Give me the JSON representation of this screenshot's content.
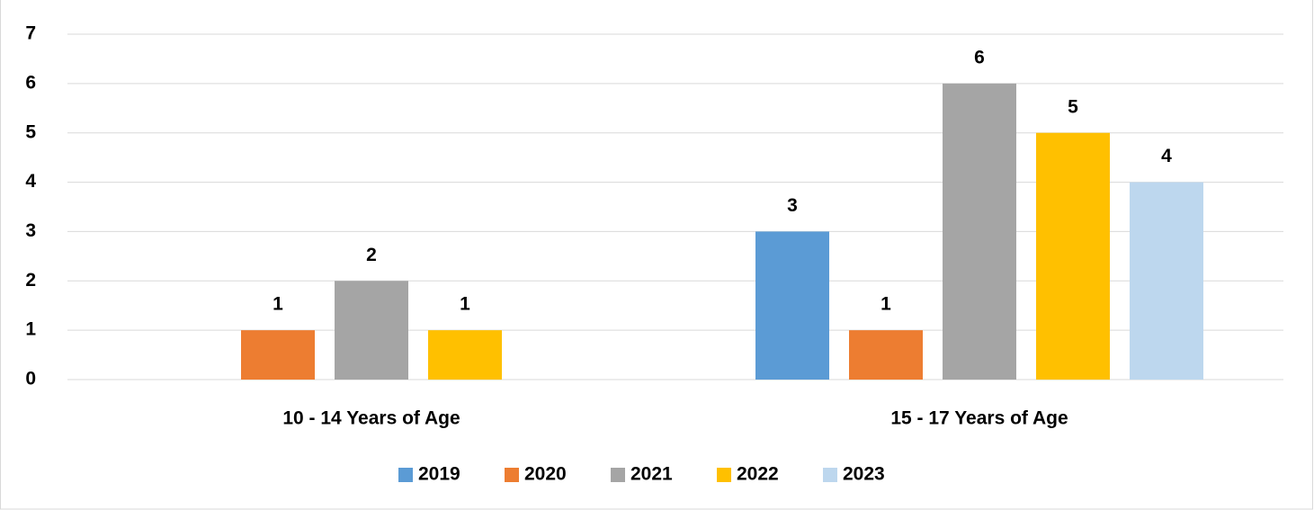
{
  "chart_data": {
    "type": "bar",
    "categories": [
      "10 - 14 Years of Age",
      "15 - 17 Years of Age"
    ],
    "series": [
      {
        "name": "2019",
        "color": "#5b9bd5",
        "values": [
          null,
          3
        ]
      },
      {
        "name": "2020",
        "color": "#ed7d31",
        "values": [
          1,
          1
        ]
      },
      {
        "name": "2021",
        "color": "#a5a5a5",
        "values": [
          2,
          6
        ]
      },
      {
        "name": "2022",
        "color": "#ffc000",
        "values": [
          1,
          5
        ]
      },
      {
        "name": "2023",
        "color": "#bdd7ee",
        "values": [
          null,
          4
        ]
      }
    ],
    "ylim": [
      0,
      7
    ],
    "yticks": [
      0,
      1,
      2,
      3,
      4,
      5,
      6,
      7
    ],
    "grid": true,
    "legend": "bottom"
  }
}
